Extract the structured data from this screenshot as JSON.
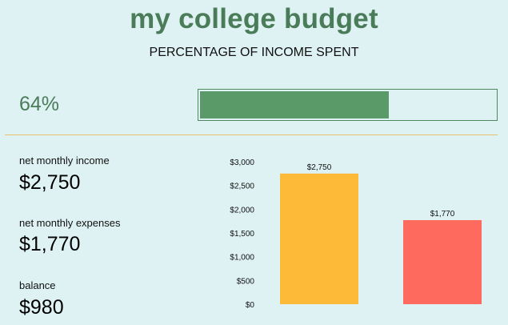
{
  "header": {
    "title": "my college budget",
    "subtitle": "PERCENTAGE OF INCOME SPENT"
  },
  "progress": {
    "label": "64%",
    "fraction": 0.64,
    "fill_color": "#5a9a69"
  },
  "stats": [
    {
      "label": "net monthly income",
      "value": "$2,750"
    },
    {
      "label": "net monthly expenses",
      "value": "$1,770"
    },
    {
      "label": "balance",
      "value": "$980"
    }
  ],
  "chart_data": {
    "type": "bar",
    "categories": [
      "",
      ""
    ],
    "values": [
      2750,
      1770
    ],
    "data_labels": [
      "$2,750",
      "$1,770"
    ],
    "colors": [
      "#fdb938",
      "#ff6a5e"
    ],
    "ylim": [
      0,
      3000
    ],
    "yticks": [
      0,
      500,
      1000,
      1500,
      2000,
      2500,
      3000
    ],
    "ytick_labels": [
      "$0",
      "$500",
      "$1,000",
      "$1,500",
      "$2,000",
      "$2,500",
      "$3,000"
    ],
    "grid": false,
    "title": "",
    "xlabel": "",
    "ylabel": ""
  }
}
